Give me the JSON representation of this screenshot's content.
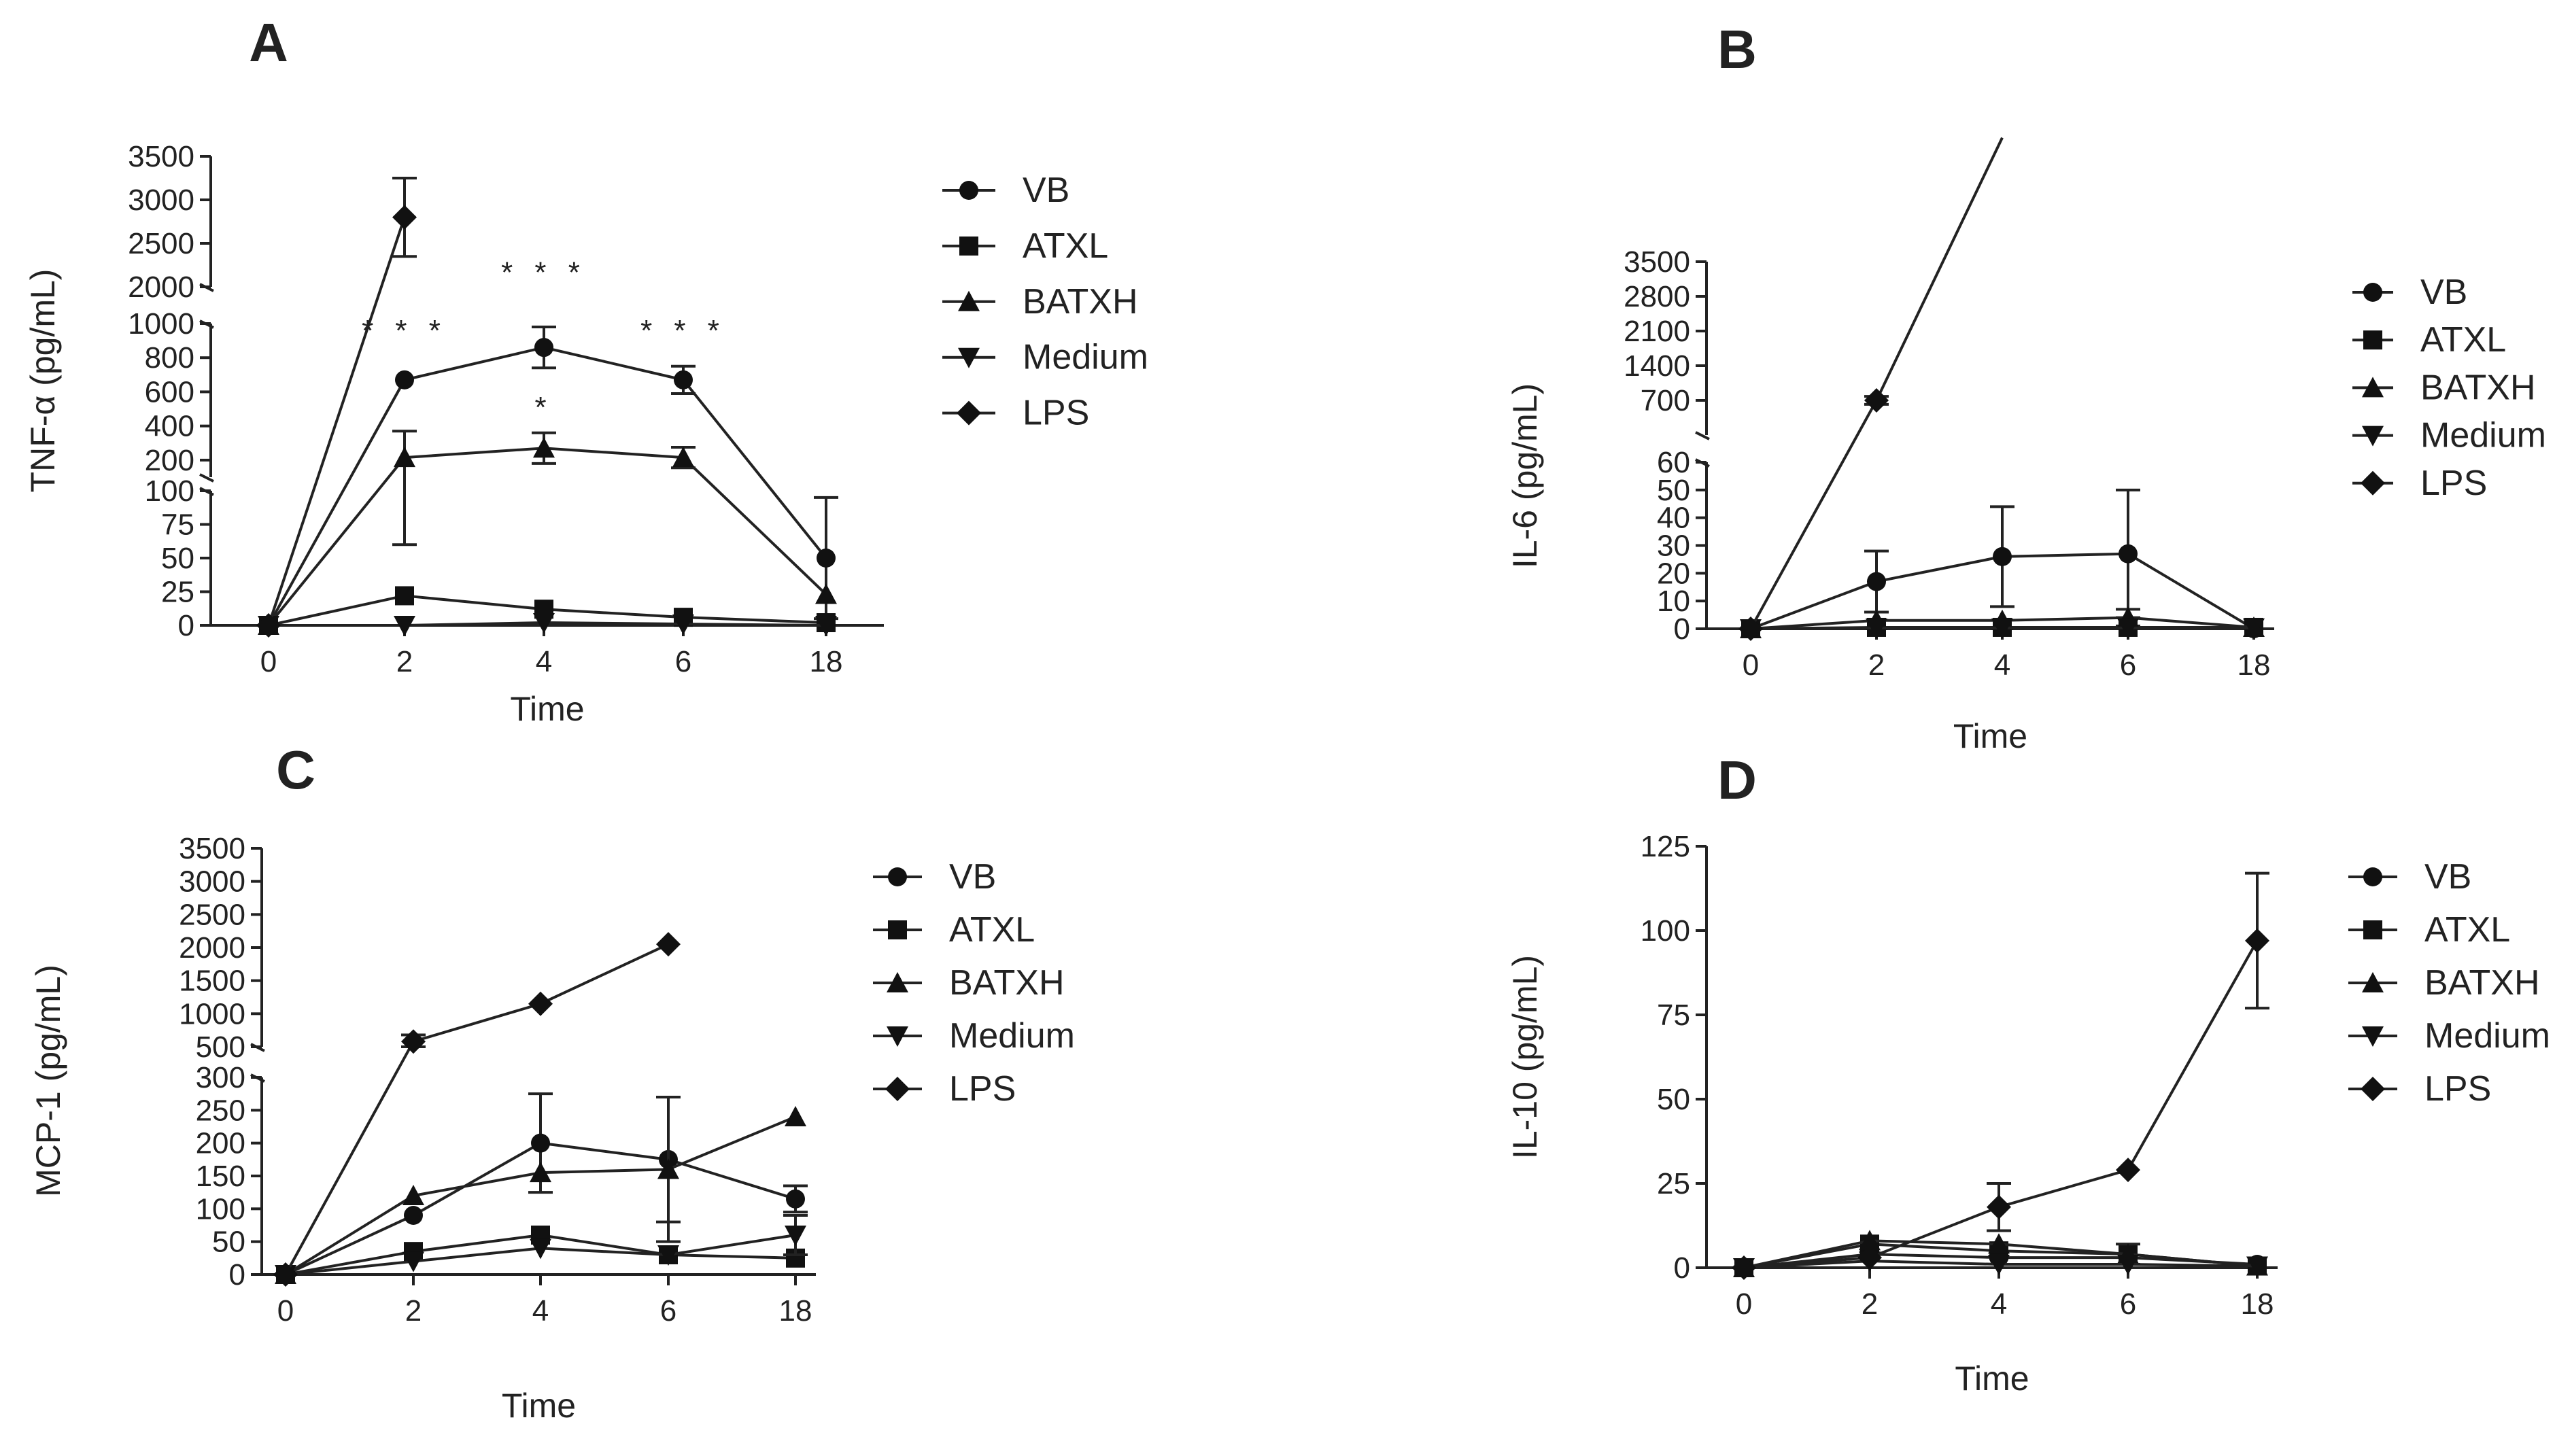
{
  "chart_data": [
    {
      "panel": "A",
      "type": "line",
      "ylabel": "TNF-α (pg/mL)",
      "xlabel": "Time",
      "categories": [
        "0",
        "2",
        "4",
        "6",
        "18"
      ],
      "y_segments": [
        {
          "range": [
            0,
            100
          ],
          "ticks": [
            "0",
            "25",
            "50",
            "75",
            "100"
          ]
        },
        {
          "range": [
            100,
            1000
          ],
          "ticks": [
            "200",
            "400",
            "600",
            "800",
            "1000"
          ]
        },
        {
          "range": [
            2000,
            3500
          ],
          "ticks": [
            "2000",
            "2500",
            "3000",
            "3500"
          ]
        }
      ],
      "series": [
        {
          "name": "VB",
          "marker": "circle",
          "values": [
            0,
            670,
            860,
            670,
            50
          ],
          "errors": [
            0,
            0,
            120,
            80,
            45
          ]
        },
        {
          "name": "ATXL",
          "marker": "square",
          "values": [
            0,
            22,
            12,
            6,
            2
          ],
          "errors": [
            0,
            0,
            0,
            0,
            0
          ]
        },
        {
          "name": "BATXH",
          "marker": "triangle-up",
          "values": [
            0,
            215,
            270,
            215,
            23
          ],
          "errors": [
            0,
            155,
            90,
            60,
            0
          ]
        },
        {
          "name": "Medium",
          "marker": "triangle-down",
          "values": [
            0,
            0,
            2,
            1,
            0
          ],
          "errors": [
            0,
            0,
            0,
            0,
            0
          ]
        },
        {
          "name": "LPS",
          "marker": "diamond",
          "values": [
            0,
            2800,
            null,
            null,
            null
          ],
          "errors": [
            0,
            450,
            0,
            0,
            0
          ]
        }
      ],
      "annotations": [
        {
          "text": "* * *",
          "x": "2",
          "y": 900
        },
        {
          "text": "* * *",
          "x": "4",
          "y": 2050
        },
        {
          "text": "*",
          "x": "4",
          "y": 450
        },
        {
          "text": "* * *",
          "x": "6",
          "y": 900
        }
      ],
      "legend": [
        "VB",
        "ATXL",
        "BATXH",
        "Medium",
        "LPS"
      ]
    },
    {
      "panel": "B",
      "type": "line",
      "ylabel": "IL-6 (pg/mL)",
      "xlabel": "Time",
      "categories": [
        "0",
        "2",
        "4",
        "6",
        "18"
      ],
      "y_segments": [
        {
          "range": [
            0,
            60
          ],
          "ticks": [
            "0",
            "10",
            "20",
            "30",
            "40",
            "50",
            "60"
          ]
        },
        {
          "range": [
            0,
            3500
          ],
          "ticks": [
            "700",
            "1400",
            "2100",
            "2800",
            "3500"
          ]
        }
      ],
      "series": [
        {
          "name": "VB",
          "marker": "circle",
          "values": [
            0,
            17,
            26,
            27,
            0
          ],
          "errors": [
            0,
            11,
            18,
            23,
            0
          ]
        },
        {
          "name": "ATXL",
          "marker": "square",
          "values": [
            0,
            0.5,
            0.5,
            0.5,
            0.5
          ],
          "errors": [
            0,
            0,
            0,
            0,
            0
          ]
        },
        {
          "name": "BATXH",
          "marker": "triangle-up",
          "values": [
            0,
            3,
            3,
            4,
            0.5
          ],
          "errors": [
            0,
            0,
            0,
            3,
            0
          ]
        },
        {
          "name": "Medium",
          "marker": "triangle-down",
          "values": [
            0,
            0.3,
            0.3,
            0.3,
            0.3
          ],
          "errors": [
            0,
            0,
            0,
            0,
            0
          ]
        },
        {
          "name": "LPS",
          "marker": "diamond",
          "values": [
            0,
            700,
            null,
            null,
            null
          ],
          "errors": [
            0,
            80,
            0,
            0,
            0
          ]
        }
      ],
      "legend": [
        "VB",
        "ATXL",
        "BATXH",
        "Medium",
        "LPS"
      ]
    },
    {
      "panel": "C",
      "type": "line",
      "ylabel": "MCP-1 (pg/mL)",
      "xlabel": "Time",
      "categories": [
        "0",
        "2",
        "4",
        "6",
        "18"
      ],
      "y_segments": [
        {
          "range": [
            0,
            300
          ],
          "ticks": [
            "0",
            "50",
            "100",
            "150",
            "200",
            "250",
            "300"
          ]
        },
        {
          "range": [
            500,
            3500
          ],
          "ticks": [
            "500",
            "1000",
            "1500",
            "2000",
            "2500",
            "3000",
            "3500"
          ]
        }
      ],
      "series": [
        {
          "name": "VB",
          "marker": "circle",
          "values": [
            0,
            90,
            200,
            175,
            115
          ],
          "errors": [
            0,
            0,
            75,
            95,
            20
          ]
        },
        {
          "name": "ATXL",
          "marker": "square",
          "values": [
            0,
            35,
            60,
            30,
            25
          ],
          "errors": [
            0,
            0,
            0,
            0,
            0
          ]
        },
        {
          "name": "BATXH",
          "marker": "triangle-up",
          "values": [
            0,
            120,
            155,
            160,
            240
          ],
          "errors": [
            0,
            0,
            0,
            110,
            0
          ]
        },
        {
          "name": "Medium",
          "marker": "triangle-down",
          "values": [
            0,
            20,
            40,
            30,
            60
          ],
          "errors": [
            0,
            0,
            0,
            0,
            30
          ]
        },
        {
          "name": "LPS",
          "marker": "diamond",
          "values": [
            0,
            580,
            1150,
            2050,
            null
          ],
          "errors": [
            0,
            100,
            0,
            0,
            0
          ]
        }
      ],
      "legend": [
        "VB",
        "ATXL",
        "BATXH",
        "Medium",
        "LPS"
      ]
    },
    {
      "panel": "D",
      "type": "line",
      "ylabel": "IL-10 (pg/mL)",
      "xlabel": "Time",
      "categories": [
        "0",
        "2",
        "4",
        "6",
        "18"
      ],
      "y_segments": [
        {
          "range": [
            0,
            125
          ],
          "ticks": [
            "0",
            "25",
            "50",
            "75",
            "100",
            "125"
          ]
        }
      ],
      "series": [
        {
          "name": "VB",
          "marker": "circle",
          "values": [
            0,
            4,
            3,
            3,
            1
          ],
          "errors": [
            0,
            0,
            0,
            0,
            0
          ]
        },
        {
          "name": "ATXL",
          "marker": "square",
          "values": [
            0,
            7,
            5,
            4,
            0.5
          ],
          "errors": [
            0,
            0,
            0,
            0,
            0
          ]
        },
        {
          "name": "BATXH",
          "marker": "triangle-up",
          "values": [
            0,
            8,
            7,
            4,
            0.5
          ],
          "errors": [
            0,
            0,
            0,
            3,
            0
          ]
        },
        {
          "name": "Medium",
          "marker": "triangle-down",
          "values": [
            0,
            2,
            1,
            1,
            0.5
          ],
          "errors": [
            0,
            0,
            0,
            0,
            0
          ]
        },
        {
          "name": "LPS",
          "marker": "diamond",
          "values": [
            0,
            3,
            18,
            29,
            97
          ],
          "errors": [
            0,
            0,
            7,
            0,
            20
          ]
        }
      ],
      "legend": [
        "VB",
        "ATXL",
        "BATXH",
        "Medium",
        "LPS"
      ]
    }
  ]
}
